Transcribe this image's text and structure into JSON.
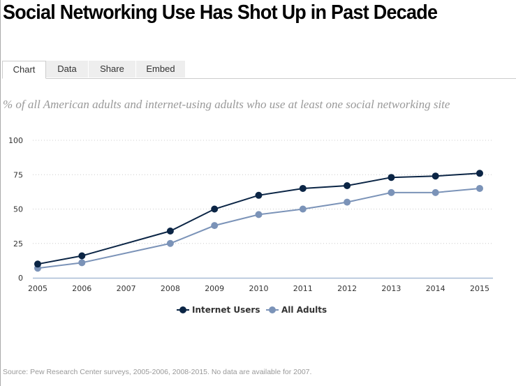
{
  "title": "Social Networking Use Has Shot Up in Past Decade",
  "tabs": [
    {
      "label": "Chart",
      "active": true
    },
    {
      "label": "Data"
    },
    {
      "label": "Share"
    },
    {
      "label": "Embed"
    }
  ],
  "subtitle": "% of all American adults and internet-using adults who use at least one social networking site",
  "source": "Source: Pew Research Center surveys, 2005-2006, 2008-2015. No data are available for 2007.",
  "chart_data": {
    "type": "line",
    "x": [
      2005,
      2006,
      2007,
      2008,
      2009,
      2010,
      2011,
      2012,
      2013,
      2014,
      2015
    ],
    "xticks": [
      "2005",
      "2006",
      "2007",
      "2008",
      "2009",
      "2010",
      "2011",
      "2012",
      "2013",
      "2014",
      "2015"
    ],
    "yticks": [
      "0",
      "25",
      "50",
      "75",
      "100"
    ],
    "ylim": [
      0,
      100
    ],
    "grid": true,
    "legend_position": "bottom",
    "series": [
      {
        "name": "Internet Users",
        "color": "#0b2545",
        "values": [
          10,
          16,
          null,
          34,
          50,
          60,
          65,
          67,
          73,
          74,
          76
        ]
      },
      {
        "name": "All Adults",
        "color": "#7b93b8",
        "values": [
          7,
          11,
          null,
          25,
          38,
          46,
          50,
          55,
          62,
          62,
          65
        ]
      }
    ]
  }
}
